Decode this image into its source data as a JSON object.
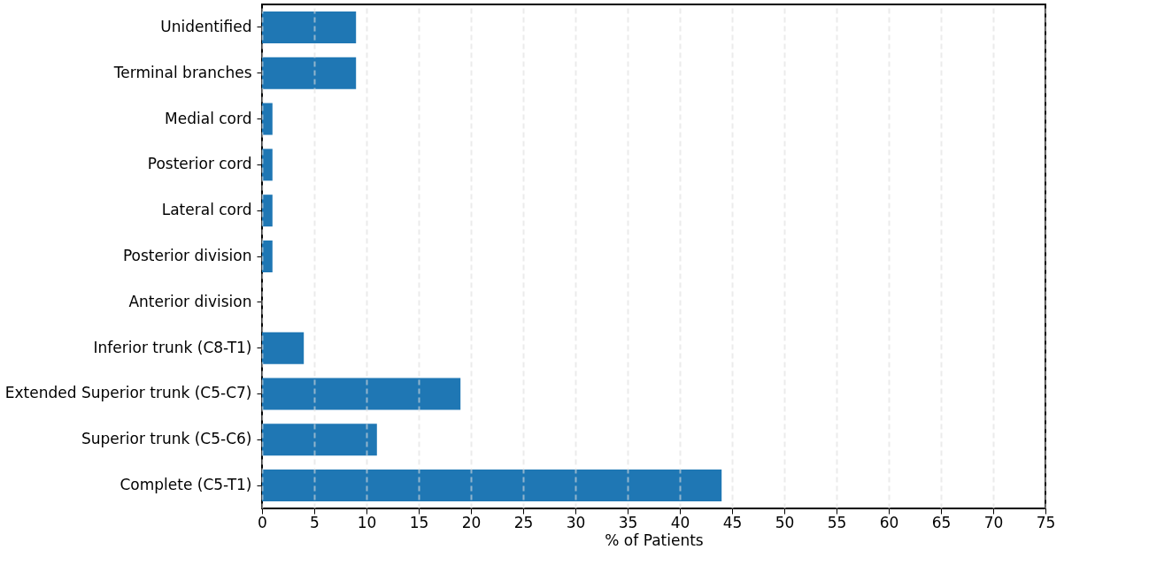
{
  "chart_data": {
    "type": "bar",
    "orientation": "horizontal",
    "xlabel": "% of Patients",
    "categories": [
      "Unidentified",
      "Terminal branches",
      "Medial cord",
      "Posterior cord",
      "Lateral cord",
      "Posterior division",
      "Anterior division",
      "Inferior trunk (C8-T1)",
      "Extended Superior trunk (C5-C7)",
      "Superior trunk (C5-C6)",
      "Complete (C5-T1)"
    ],
    "values": [
      9,
      9,
      1,
      1,
      1,
      1,
      0,
      4,
      19,
      11,
      44
    ],
    "color": "#1f77b4",
    "xlim": [
      0,
      75
    ],
    "xticks": [
      0,
      5,
      10,
      15,
      20,
      25,
      30,
      35,
      40,
      45,
      50,
      55,
      60,
      65,
      70,
      75
    ],
    "grid": "x"
  }
}
